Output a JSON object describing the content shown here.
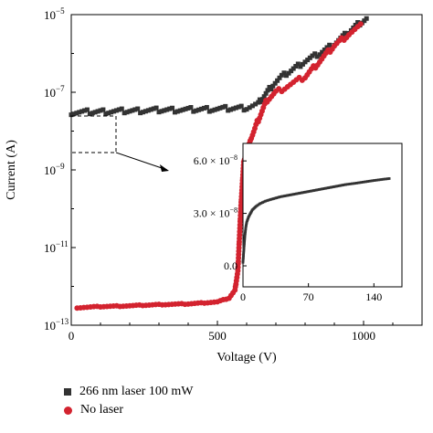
{
  "chart_data": [
    {
      "type": "scatter",
      "title": "",
      "xlabel": "Voltage (V)",
      "ylabel": "Current (A)",
      "xlim": [
        0,
        1200
      ],
      "ylim_exponent": [
        -13,
        -5
      ],
      "y_scale": "log",
      "grid": false,
      "legend_position": "bottom-left",
      "x_ticks": [
        0,
        500,
        1000
      ],
      "x_tick_labels": [
        "0",
        "500",
        "1000"
      ],
      "y_ticks": [
        -13,
        -11,
        -9,
        -7,
        -5
      ],
      "y_tick_labels_base": [
        "10",
        "10",
        "10",
        "10",
        "10"
      ],
      "y_tick_labels_exp": [
        "−13",
        "−11",
        "−9",
        "−7",
        "−5"
      ],
      "series": [
        {
          "name": "266 nm laser 100 mW",
          "marker": "square",
          "color": "#333333",
          "x": [
            0,
            100,
            200,
            300,
            400,
            500,
            600,
            640,
            660,
            690,
            720,
            760,
            800,
            850,
            900,
            950,
            980,
            1010
          ],
          "y_exponent": [
            -7.52,
            -7.5,
            -7.48,
            -7.46,
            -7.45,
            -7.43,
            -7.4,
            -7.3,
            -7.1,
            -6.8,
            -6.6,
            -6.4,
            -6.2,
            -6.0,
            -5.75,
            -5.45,
            -5.25,
            -5.1
          ]
        },
        {
          "name": "No laser",
          "marker": "circle",
          "color": "#d3232f",
          "x": [
            20,
            100,
            200,
            300,
            400,
            500,
            540,
            560,
            570,
            580,
            590,
            600,
            620,
            640,
            670,
            700,
            750,
            800,
            850,
            900,
            950,
            990
          ],
          "y_exponent": [
            -12.55,
            -12.52,
            -12.5,
            -12.47,
            -12.45,
            -12.4,
            -12.3,
            -12.1,
            -11.6,
            -10.0,
            -8.8,
            -8.5,
            -8.1,
            -7.7,
            -7.2,
            -7.0,
            -6.8,
            -6.6,
            -6.2,
            -5.8,
            -5.5,
            -5.3
          ]
        }
      ]
    },
    {
      "type": "scatter",
      "title": "",
      "xlabel": "",
      "ylabel": "",
      "xlim": [
        0,
        170
      ],
      "ylim": [
        -1.2e-08,
        7e-08
      ],
      "x_ticks": [
        0,
        70,
        140
      ],
      "x_tick_labels": [
        "0",
        "70",
        "140"
      ],
      "y_ticks": [
        0,
        3e-08,
        6e-08
      ],
      "y_tick_labels": [
        "0.0",
        "3.0 × 10",
        "6.0 × 10"
      ],
      "y_tick_exp": [
        "",
        "−8",
        "−8"
      ],
      "series": [
        {
          "name": "266 nm laser 100 mW",
          "color": "#333333",
          "x": [
            0,
            1,
            2,
            3,
            4,
            6,
            8,
            10,
            14,
            18,
            24,
            30,
            40,
            50,
            60,
            70,
            80,
            90,
            100,
            110,
            120,
            130,
            140,
            150,
            158
          ],
          "y": [
            2e-09,
            1e-08,
            1.7e-08,
            2.2e-08,
            2.5e-08,
            2.8e-08,
            3e-08,
            3.2e-08,
            3.4e-08,
            3.55e-08,
            3.7e-08,
            3.8e-08,
            3.95e-08,
            4.05e-08,
            4.15e-08,
            4.25e-08,
            4.35e-08,
            4.45e-08,
            4.55e-08,
            4.65e-08,
            4.72e-08,
            4.8e-08,
            4.88e-08,
            4.95e-08,
            5e-08
          ]
        }
      ]
    }
  ],
  "legend": {
    "items": [
      {
        "label": "266 nm laser 100 mW"
      },
      {
        "label": "No laser"
      }
    ]
  },
  "colors": {
    "laser_series": "#333333",
    "no_laser_series": "#d3232f"
  }
}
